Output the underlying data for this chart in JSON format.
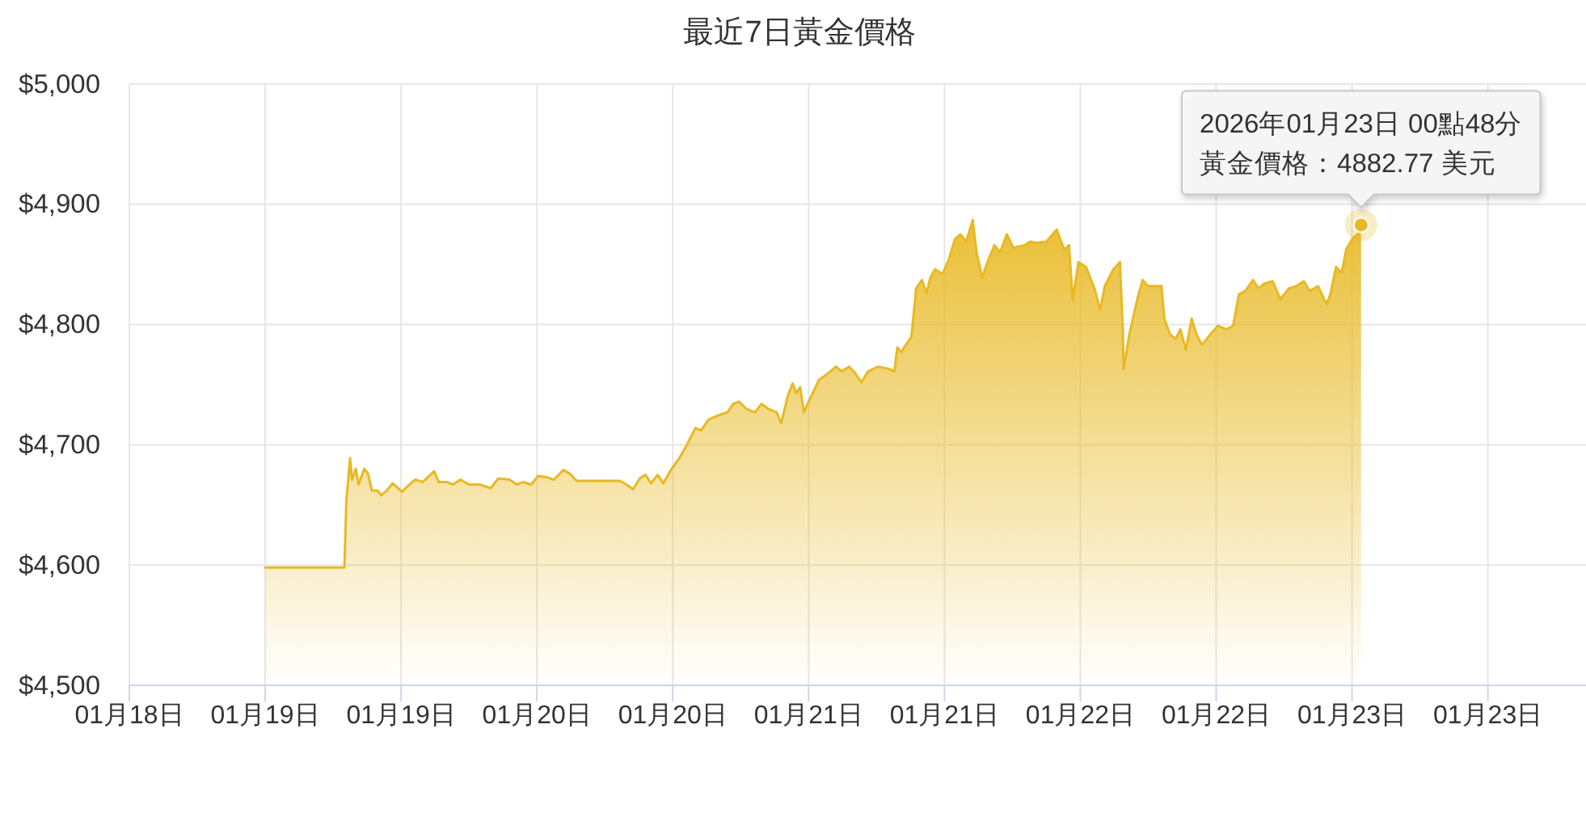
{
  "chart_data": {
    "type": "area",
    "title": "最近7日黃金價格",
    "x": [
      "2026-01-19T00:00",
      "2026-01-19T07:00",
      "2026-01-19T07:10",
      "2026-01-19T07:30",
      "2026-01-19T07:40",
      "2026-01-19T08:00",
      "2026-01-19T08:15",
      "2026-01-19T08:45",
      "2026-01-19T09:05",
      "2026-01-19T09:25",
      "2026-01-19T09:55",
      "2026-01-19T10:15",
      "2026-01-19T10:45",
      "2026-01-19T11:15",
      "2026-01-19T12:05",
      "2026-01-19T12:45",
      "2026-01-19T13:15",
      "2026-01-19T13:55",
      "2026-01-19T14:55",
      "2026-01-19T15:20",
      "2026-01-19T16:05",
      "2026-01-19T16:35",
      "2026-01-19T17:15",
      "2026-01-19T18:00",
      "2026-01-19T18:55",
      "2026-01-19T19:55",
      "2026-01-19T20:35",
      "2026-01-19T21:35",
      "2026-01-19T22:15",
      "2026-01-19T22:45",
      "2026-01-19T23:30",
      "2026-01-20T00:05",
      "2026-01-20T00:55",
      "2026-01-20T01:30",
      "2026-01-20T02:20",
      "2026-01-20T02:55",
      "2026-01-20T03:30",
      "2026-01-20T07:20",
      "2026-01-20T07:55",
      "2026-01-20T08:30",
      "2026-01-20T09:05",
      "2026-01-20T09:35",
      "2026-01-20T10:05",
      "2026-01-20T10:40",
      "2026-01-20T11:10",
      "2026-01-20T11:50",
      "2026-01-20T12:35",
      "2026-01-20T13:15",
      "2026-01-20T14:00",
      "2026-01-20T14:30",
      "2026-01-20T15:10",
      "2026-01-20T16:10",
      "2026-01-20T16:50",
      "2026-01-20T17:20",
      "2026-01-20T17:50",
      "2026-01-20T18:30",
      "2026-01-20T19:15",
      "2026-01-20T19:50",
      "2026-01-20T20:25",
      "2026-01-20T21:10",
      "2026-01-20T21:35",
      "2026-01-20T22:10",
      "2026-01-20T22:35",
      "2026-01-20T22:55",
      "2026-01-20T23:15",
      "2026-01-20T23:35",
      "2026-01-21T00:00",
      "2026-01-21T00:55",
      "2026-01-21T01:40",
      "2026-01-21T02:25",
      "2026-01-21T02:55",
      "2026-01-21T03:35",
      "2026-01-21T04:05",
      "2026-01-21T04:40",
      "2026-01-21T05:15",
      "2026-01-21T06:10",
      "2026-01-21T07:10",
      "2026-01-21T07:35",
      "2026-01-21T07:50",
      "2026-01-21T08:10",
      "2026-01-21T09:05",
      "2026-01-21T09:30",
      "2026-01-21T10:00",
      "2026-01-21T10:25",
      "2026-01-21T10:45",
      "2026-01-21T11:10",
      "2026-01-21T11:50",
      "2026-01-21T12:25",
      "2026-01-21T12:55",
      "2026-01-21T13:25",
      "2026-01-21T13:55",
      "2026-01-21T14:30",
      "2026-01-21T14:50",
      "2026-01-21T15:20",
      "2026-01-21T15:50",
      "2026-01-21T16:25",
      "2026-01-21T16:55",
      "2026-01-21T17:30",
      "2026-01-21T18:05",
      "2026-01-21T19:05",
      "2026-01-21T19:35",
      "2026-01-21T20:00",
      "2026-01-21T21:00",
      "2026-01-21T21:55",
      "2026-01-21T22:35",
      "2026-01-21T23:00",
      "2026-01-21T23:20",
      "2026-01-21T23:50",
      "2026-01-22T00:30",
      "2026-01-22T01:15",
      "2026-01-22T01:45",
      "2026-01-22T02:10",
      "2026-01-22T02:55",
      "2026-01-22T03:30",
      "2026-01-22T03:45",
      "2026-01-22T03:50",
      "2026-01-22T04:20",
      "2026-01-22T05:05",
      "2026-01-22T05:30",
      "2026-01-22T06:00",
      "2026-01-22T07:10",
      "2026-01-22T07:25",
      "2026-01-22T07:55",
      "2026-01-22T08:25",
      "2026-01-22T08:50",
      "2026-01-22T09:20",
      "2026-01-22T09:50",
      "2026-01-22T10:15",
      "2026-01-22T10:45",
      "2026-01-22T11:30",
      "2026-01-22T12:10",
      "2026-01-22T12:55",
      "2026-01-22T13:30",
      "2026-01-22T14:00",
      "2026-01-22T14:35",
      "2026-01-22T15:15",
      "2026-01-22T15:45",
      "2026-01-22T16:15",
      "2026-01-22T17:00",
      "2026-01-22T17:40",
      "2026-01-22T18:25",
      "2026-01-22T19:05",
      "2026-01-22T19:45",
      "2026-01-22T20:15",
      "2026-01-22T21:00",
      "2026-01-22T21:45",
      "2026-01-22T22:05",
      "2026-01-22T22:35",
      "2026-01-22T23:05",
      "2026-01-22T23:30",
      "2026-01-23T00:05",
      "2026-01-23T00:30",
      "2026-01-23T00:48"
    ],
    "values": [
      4598,
      4598,
      4653,
      4689,
      4671,
      4680,
      4667,
      4680,
      4676,
      4662,
      4662,
      4658,
      4662,
      4668,
      4661,
      4667,
      4671,
      4669,
      4678,
      4669,
      4669,
      4667,
      4671,
      4667,
      4667,
      4664,
      4672,
      4671,
      4667,
      4669,
      4667,
      4674,
      4673,
      4671,
      4679,
      4676,
      4670,
      4670,
      4667,
      4663,
      4672,
      4675,
      4668,
      4675,
      4668,
      4679,
      4689,
      4700,
      4714,
      4712,
      4721,
      4725,
      4727,
      4734,
      4736,
      4730,
      4727,
      4734,
      4730,
      4727,
      4718,
      4741,
      4751,
      4743,
      4748,
      4727,
      4736,
      4754,
      4759,
      4765,
      4761,
      4765,
      4760,
      4752,
      4761,
      4765,
      4763,
      4761,
      4781,
      4777,
      4790,
      4830,
      4837,
      4826,
      4839,
      4846,
      4842,
      4855,
      4871,
      4875,
      4869,
      4887,
      4860,
      4839,
      4853,
      4866,
      4860,
      4875,
      4864,
      4866,
      4869,
      4868,
      4869,
      4879,
      4862,
      4866,
      4820,
      4852,
      4848,
      4830,
      4812,
      4832,
      4846,
      4852,
      4796,
      4763,
      4792,
      4823,
      4837,
      4832,
      4832,
      4805,
      4792,
      4788,
      4796,
      4779,
      4805,
      4792,
      4783,
      4792,
      4799,
      4796,
      4799,
      4825,
      4828,
      4837,
      4830,
      4834,
      4836,
      4821,
      4830,
      4832,
      4836,
      4828,
      4832,
      4817,
      4825,
      4848,
      4843,
      4863,
      4872,
      4875,
      4882.77
    ],
    "color": "#e8b923",
    "xlim": [
      "2026-01-18T12:00",
      "2026-01-23T20:40"
    ],
    "ylim": [
      4500,
      5000
    ],
    "xticks": [
      {
        "value": "2026-01-18T12:00",
        "label": "01月18日"
      },
      {
        "value": "2026-01-19T00:00",
        "label": "01月19日"
      },
      {
        "value": "2026-01-19T12:00",
        "label": "01月19日"
      },
      {
        "value": "2026-01-20T00:00",
        "label": "01月20日"
      },
      {
        "value": "2026-01-20T12:00",
        "label": "01月20日"
      },
      {
        "value": "2026-01-21T00:00",
        "label": "01月21日"
      },
      {
        "value": "2026-01-21T12:00",
        "label": "01月21日"
      },
      {
        "value": "2026-01-22T00:00",
        "label": "01月22日"
      },
      {
        "value": "2026-01-22T12:00",
        "label": "01月22日"
      },
      {
        "value": "2026-01-23T00:00",
        "label": "01月23日"
      },
      {
        "value": "2026-01-23T12:00",
        "label": "01月23日"
      }
    ],
    "yticks": [
      {
        "value": 4500,
        "label": "$4,500"
      },
      {
        "value": 4600,
        "label": "$4,600"
      },
      {
        "value": 4700,
        "label": "$4,700"
      },
      {
        "value": 4800,
        "label": "$4,800"
      },
      {
        "value": 4900,
        "label": "$4,900"
      },
      {
        "value": 5000,
        "label": "$5,000"
      }
    ],
    "grid": true,
    "annotations": [
      {
        "text": "2026年01月23日 00點48分黃金價格：4882.77 美元",
        "x": "2026-01-23T00:48",
        "y": 4882.77
      }
    ]
  }
}
